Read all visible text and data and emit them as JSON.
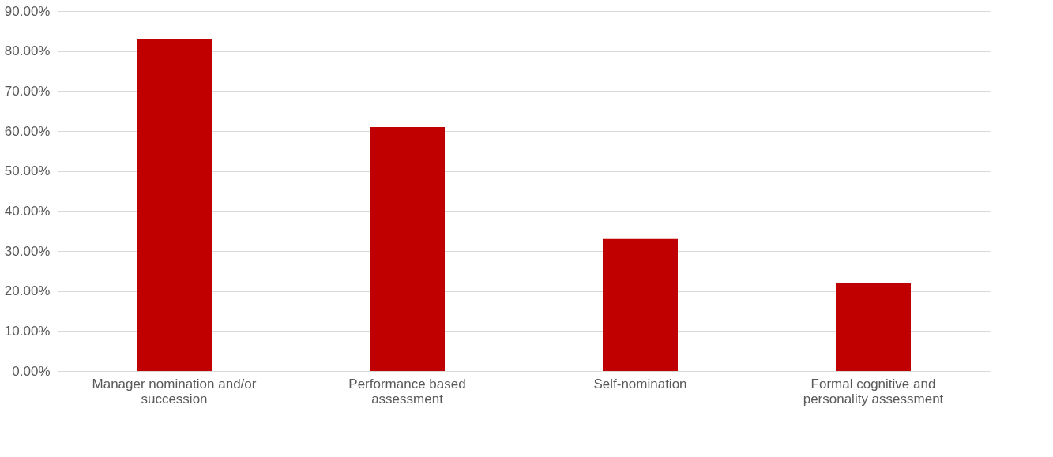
{
  "chart_data": {
    "type": "bar",
    "categories": [
      "Manager nomination and/or succession",
      "Performance based assessment",
      "Self-nomination",
      "Formal cognitive and personality assessment"
    ],
    "values": [
      83,
      61,
      33,
      22
    ],
    "color": "#c00000",
    "ylim": [
      0,
      90
    ],
    "yticks": [
      {
        "value": 0,
        "label": "0.00%"
      },
      {
        "value": 10,
        "label": "10.00%"
      },
      {
        "value": 20,
        "label": "20.00%"
      },
      {
        "value": 30,
        "label": "30.00%"
      },
      {
        "value": 40,
        "label": "40.00%"
      },
      {
        "value": 50,
        "label": "50.00%"
      },
      {
        "value": 60,
        "label": "60.00%"
      },
      {
        "value": 70,
        "label": "70.00%"
      },
      {
        "value": 80,
        "label": "80.00%"
      },
      {
        "value": 90,
        "label": "90.00%"
      }
    ],
    "grid": "y"
  }
}
